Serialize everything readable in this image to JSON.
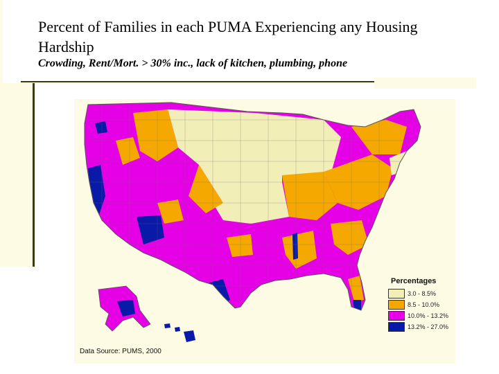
{
  "slide": {
    "title": "Percent of Families in each PUMA Experiencing any Housing Hardship",
    "subtitle": "Crowding, Rent/Mort. > 30% inc., lack of kitchen, plumbing, phone",
    "source": "Data Source: PUMS, 2000"
  },
  "legend": {
    "title": "Percentages",
    "items": [
      {
        "label": "3.0 - 8.5%",
        "color": "#f2eeb8"
      },
      {
        "label": "8.5 - 10.0%",
        "color": "#f5a800"
      },
      {
        "label": "10.0% - 13.2%",
        "color": "#e600e6"
      },
      {
        "label": "13.2% - 27.0%",
        "color": "#0a1aa8"
      }
    ]
  },
  "map_colors": {
    "background": "#fdfbe3",
    "boundary": "#6b6b6b"
  }
}
